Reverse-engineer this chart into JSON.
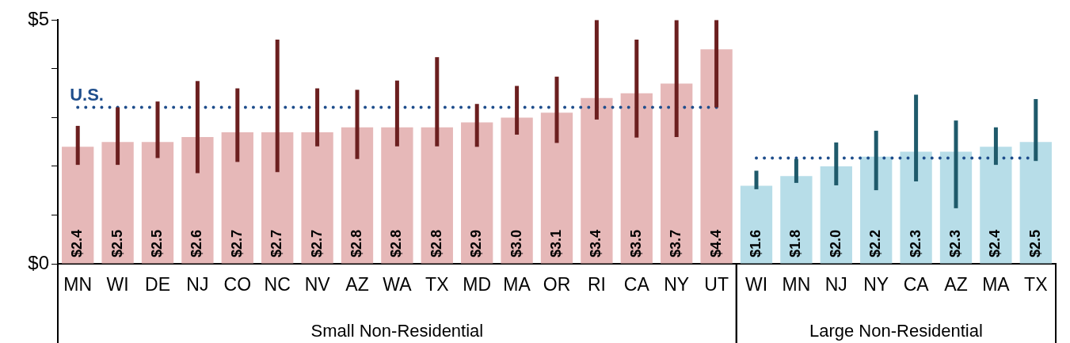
{
  "chart_data": {
    "type": "bar",
    "categories": [
      "MN",
      "WI",
      "DE",
      "NJ",
      "CO",
      "NC",
      "NV",
      "AZ",
      "WA",
      "TX",
      "MD",
      "MA",
      "OR",
      "RI",
      "CA",
      "NY",
      "UT",
      "WI",
      "MN",
      "NJ",
      "NY",
      "CA",
      "AZ",
      "MA",
      "TX"
    ],
    "annotations": [
      "Small Non-Residential",
      "Large Non-Residential"
    ],
    "ylim": [
      0,
      5
    ],
    "yticks": [
      {
        "value": 0,
        "label": "$0"
      },
      {
        "value": 1,
        "label": null
      },
      {
        "value": 2,
        "label": null
      },
      {
        "value": 3,
        "label": null
      },
      {
        "value": 4,
        "label": null
      },
      {
        "value": 5,
        "label": "$5"
      }
    ],
    "series": [
      {
        "color": "#e6b8b8",
        "values": [
          2.4,
          2.5,
          2.5,
          2.6,
          2.7,
          2.7,
          2.7,
          2.8,
          2.8,
          2.8,
          2.9,
          3.0,
          3.1,
          3.4,
          3.5,
          3.7,
          4.4,
          null,
          null,
          null,
          null,
          null,
          null,
          null,
          null
        ],
        "value_labels": [
          "$2.4",
          "$2.5",
          "$2.5",
          "$2.6",
          "$2.7",
          "$2.7",
          "$2.7",
          "$2.8",
          "$2.8",
          "$2.8",
          "$2.9",
          "$3.0",
          "$3.1",
          "$3.4",
          "$3.5",
          "$3.7",
          "$4.4",
          null,
          null,
          null,
          null,
          null,
          null,
          null,
          null
        ],
        "errors": [
          [
            2.03,
            2.83
          ],
          [
            2.03,
            3.21
          ],
          [
            2.17,
            3.33
          ],
          [
            1.86,
            3.75
          ],
          [
            2.09,
            3.6
          ],
          [
            1.88,
            4.6
          ],
          [
            2.41,
            3.6
          ],
          [
            2.15,
            3.57
          ],
          [
            2.41,
            3.76
          ],
          [
            2.41,
            4.24
          ],
          [
            2.4,
            3.28
          ],
          [
            2.65,
            3.65
          ],
          [
            2.48,
            3.84
          ],
          [
            2.96,
            5
          ],
          [
            2.59,
            4.6
          ],
          [
            2.6,
            5
          ],
          [
            3.21,
            5
          ],
          null,
          null,
          null,
          null,
          null,
          null,
          null,
          null
        ]
      },
      {
        "color": "#b7dde8",
        "values": [
          null,
          null,
          null,
          null,
          null,
          null,
          null,
          null,
          null,
          null,
          null,
          null,
          null,
          null,
          null,
          null,
          null,
          1.6,
          1.8,
          2.0,
          2.2,
          2.3,
          2.3,
          2.4,
          2.5
        ],
        "value_labels": [
          null,
          null,
          null,
          null,
          null,
          null,
          null,
          null,
          null,
          null,
          null,
          null,
          null,
          null,
          null,
          null,
          null,
          "$1.6",
          "$1.8",
          "$2.0",
          "$2.2",
          "$2.3",
          "$2.3",
          "$2.4",
          "$2.5"
        ],
        "errors": [
          null,
          null,
          null,
          null,
          null,
          null,
          null,
          null,
          null,
          null,
          null,
          null,
          null,
          null,
          null,
          null,
          null,
          [
            1.53,
            1.91
          ],
          [
            1.66,
            2.15
          ],
          [
            1.61,
            2.49
          ],
          [
            1.51,
            2.73
          ],
          [
            1.69,
            3.47
          ],
          [
            1.14,
            2.94
          ],
          [
            2.03,
            2.8
          ],
          [
            2.11,
            3.38
          ]
        ]
      },
      {
        "name": "U.S.",
        "type": "line",
        "color": "#1f4e8c",
        "line_style": "dotted",
        "marker": "none",
        "values": [
          3.21,
          3.21,
          3.21,
          3.21,
          3.21,
          3.21,
          3.21,
          3.21,
          3.21,
          3.21,
          3.21,
          3.21,
          3.21,
          3.21,
          3.21,
          3.21,
          3.21,
          null,
          null,
          null,
          null,
          null,
          null,
          null,
          null
        ]
      },
      {
        "type": "line",
        "color": "#1f4e8c",
        "line_style": "dotted",
        "marker": "none",
        "values": [
          null,
          null,
          null,
          null,
          null,
          null,
          null,
          null,
          null,
          null,
          null,
          null,
          null,
          null,
          null,
          null,
          null,
          2.17,
          2.17,
          2.17,
          2.17,
          2.17,
          2.17,
          2.17,
          2.17
        ]
      }
    ]
  }
}
